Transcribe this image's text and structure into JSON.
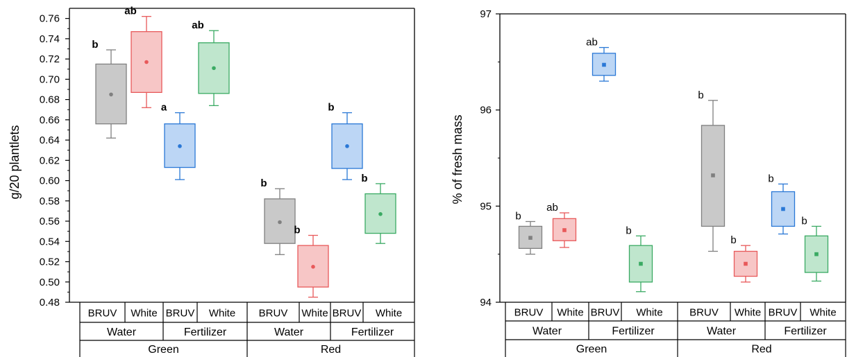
{
  "chart_data": [
    {
      "type": "box",
      "ylabel": "g/20 plantlets",
      "ylim": [
        0.48,
        0.77
      ],
      "yticks": [
        "0.48",
        "0.50",
        "0.52",
        "0.54",
        "0.56",
        "0.58",
        "0.60",
        "0.62",
        "0.64",
        "0.66",
        "0.68",
        "0.70",
        "0.72",
        "0.74",
        "0.76"
      ],
      "category_rows": {
        "treatment": [
          "BRUV",
          "White",
          "BRUV",
          "White",
          "BRUV",
          "White",
          "BRUV",
          "White"
        ],
        "solution": [
          "Water",
          "Fertilizer",
          "Water",
          "Fertilizer"
        ],
        "light": [
          "Green",
          "Red"
        ]
      },
      "boxes": [
        {
          "label": "BRUV",
          "color": "#808080",
          "fill": "#c9c9c9",
          "min": 0.642,
          "q1": 0.656,
          "median": 0.685,
          "q3": 0.715,
          "max": 0.729,
          "mean": 0.685,
          "sig": "b"
        },
        {
          "label": "White",
          "color": "#e8595a",
          "fill": "#f7c6c6",
          "min": 0.672,
          "q1": 0.687,
          "median": 0.717,
          "q3": 0.747,
          "max": 0.762,
          "mean": 0.717,
          "sig": "ab"
        },
        {
          "label": "BRUV",
          "color": "#2a78d6",
          "fill": "#bcd6f5",
          "min": 0.601,
          "q1": 0.613,
          "median": 0.634,
          "q3": 0.656,
          "max": 0.667,
          "mean": 0.634,
          "sig": "a"
        },
        {
          "label": "White",
          "color": "#3aaa63",
          "fill": "#bfe6cd",
          "min": 0.674,
          "q1": 0.686,
          "median": 0.711,
          "q3": 0.736,
          "max": 0.748,
          "mean": 0.711,
          "sig": "ab"
        },
        {
          "label": "BRUV",
          "color": "#808080",
          "fill": "#c9c9c9",
          "min": 0.527,
          "q1": 0.538,
          "median": 0.559,
          "q3": 0.582,
          "max": 0.592,
          "mean": 0.559,
          "sig": "b"
        },
        {
          "label": "White",
          "color": "#e8595a",
          "fill": "#f7c6c6",
          "min": 0.485,
          "q1": 0.495,
          "median": 0.515,
          "q3": 0.536,
          "max": 0.546,
          "mean": 0.515,
          "sig": "b"
        },
        {
          "label": "BRUV",
          "color": "#2a78d6",
          "fill": "#bcd6f5",
          "min": 0.601,
          "q1": 0.612,
          "median": 0.634,
          "q3": 0.656,
          "max": 0.667,
          "mean": 0.634,
          "sig": "b"
        },
        {
          "label": "White",
          "color": "#3aaa63",
          "fill": "#bfe6cd",
          "min": 0.538,
          "q1": 0.548,
          "median": 0.567,
          "q3": 0.587,
          "max": 0.597,
          "mean": 0.567,
          "sig": "b"
        }
      ]
    },
    {
      "type": "box",
      "ylabel": "% of fresh mass",
      "ylim": [
        94,
        97
      ],
      "yticks": [
        "94",
        "95",
        "96",
        "97"
      ],
      "category_rows": {
        "treatment": [
          "BRUV",
          "White",
          "BRUV",
          "White",
          "BRUV",
          "White",
          "BRUV",
          "White"
        ],
        "solution": [
          "Water",
          "Fertilizer",
          "Water",
          "Fertilizer"
        ],
        "light": [
          "Green",
          "Red"
        ]
      },
      "boxes": [
        {
          "label": "BRUV",
          "color": "#808080",
          "fill": "#c9c9c9",
          "min": 94.5,
          "q1": 94.56,
          "median": 94.67,
          "q3": 94.79,
          "max": 94.84,
          "mean": 94.67,
          "sig": "b"
        },
        {
          "label": "White",
          "color": "#e8595a",
          "fill": "#f7c6c6",
          "min": 94.57,
          "q1": 94.64,
          "median": 94.75,
          "q3": 94.87,
          "max": 94.93,
          "mean": 94.75,
          "sig": "ab"
        },
        {
          "label": "BRUV",
          "color": "#2a78d6",
          "fill": "#bcd6f5",
          "min": 96.3,
          "q1": 96.36,
          "median": 96.47,
          "q3": 96.59,
          "max": 96.65,
          "mean": 96.47,
          "sig": "ab"
        },
        {
          "label": "White",
          "color": "#3aaa63",
          "fill": "#bfe6cd",
          "min": 94.11,
          "q1": 94.21,
          "median": 94.4,
          "q3": 94.59,
          "max": 94.69,
          "mean": 94.4,
          "sig": "b"
        },
        {
          "label": "BRUV",
          "color": "#808080",
          "fill": "#c9c9c9",
          "min": 94.53,
          "q1": 94.79,
          "median": 95.32,
          "q3": 95.84,
          "max": 96.1,
          "mean": 95.32,
          "sig": "b"
        },
        {
          "label": "White",
          "color": "#e8595a",
          "fill": "#f7c6c6",
          "min": 94.21,
          "q1": 94.27,
          "median": 94.4,
          "q3": 94.53,
          "max": 94.59,
          "mean": 94.4,
          "sig": "b"
        },
        {
          "label": "BRUV",
          "color": "#2a78d6",
          "fill": "#bcd6f5",
          "min": 94.71,
          "q1": 94.79,
          "median": 94.97,
          "q3": 95.15,
          "max": 95.23,
          "mean": 94.97,
          "sig": "b"
        },
        {
          "label": "White",
          "color": "#3aaa63",
          "fill": "#bfe6cd",
          "min": 94.22,
          "q1": 94.31,
          "median": 94.5,
          "q3": 94.69,
          "max": 94.79,
          "mean": 94.5,
          "sig": "b"
        }
      ]
    }
  ]
}
